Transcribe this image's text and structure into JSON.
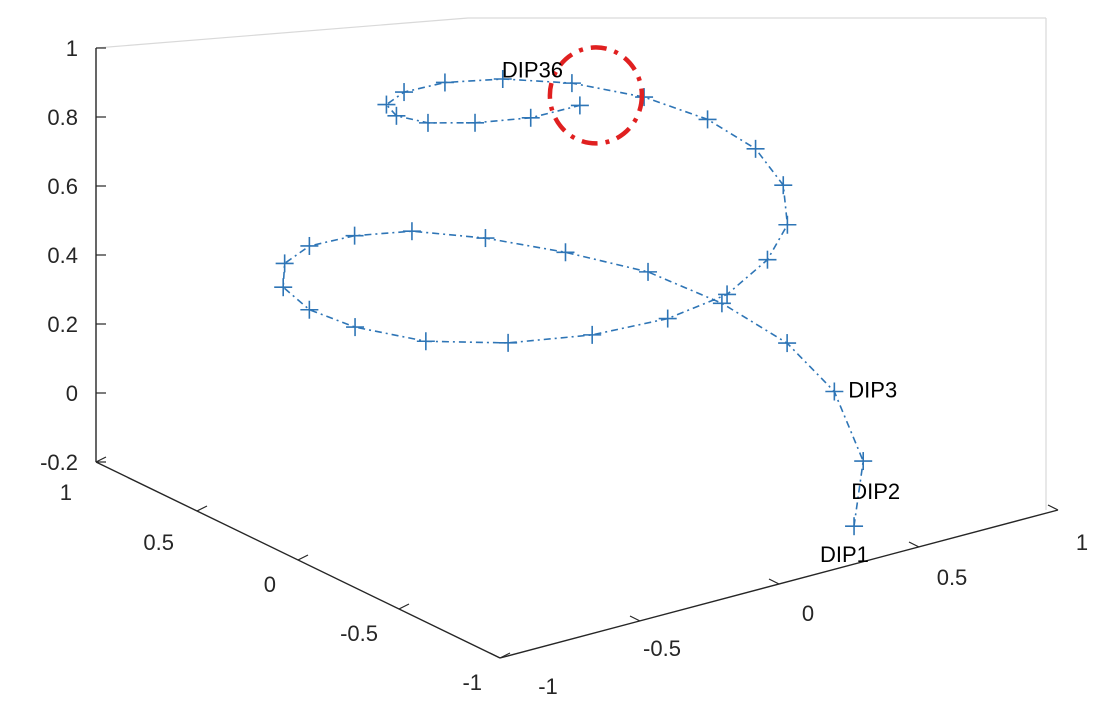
{
  "chart_data": {
    "type": "scatter",
    "projection": "3d",
    "title": "",
    "xlabel": "",
    "ylabel": "",
    "zlabel": "",
    "xlim": [
      -1,
      1
    ],
    "ylim": [
      -1,
      1
    ],
    "zlim": [
      -0.2,
      1
    ],
    "z_ticks": [
      "1",
      "0.8",
      "0.6",
      "0.4",
      "0.2",
      "0",
      "-0.2"
    ],
    "left_ticks": [
      "1",
      "0.5",
      "0",
      "-0.5",
      "-1"
    ],
    "right_ticks": [
      "1",
      "0.5",
      "0",
      "-0.5",
      "-1"
    ],
    "grid": false,
    "series": [
      {
        "marker": "+",
        "line_style": "dash-dot",
        "color": "#2E75B6",
        "points": [
          {
            "x": 0.45,
            "y": -0.75,
            "z": -0.2
          },
          {
            "x": 0.7,
            "y": -0.45,
            "z": -0.15
          },
          {
            "x": 0.85,
            "y": -0.1,
            "z": -0.08
          },
          {
            "x": 0.84,
            "y": 0.12,
            "z": 0.0
          },
          {
            "x": 0.78,
            "y": 0.36,
            "z": 0.06
          },
          {
            "x": 0.66,
            "y": 0.56,
            "z": 0.12
          },
          {
            "x": 0.48,
            "y": 0.72,
            "z": 0.17
          },
          {
            "x": 0.28,
            "y": 0.84,
            "z": 0.22
          },
          {
            "x": 0.06,
            "y": 0.9,
            "z": 0.27
          },
          {
            "x": -0.16,
            "y": 0.88,
            "z": 0.31
          },
          {
            "x": -0.38,
            "y": 0.8,
            "z": 0.35
          },
          {
            "x": -0.57,
            "y": 0.66,
            "z": 0.38
          },
          {
            "x": -0.72,
            "y": 0.46,
            "z": 0.4
          },
          {
            "x": -0.8,
            "y": 0.22,
            "z": 0.42
          },
          {
            "x": -0.81,
            "y": -0.02,
            "z": 0.44
          },
          {
            "x": -0.73,
            "y": -0.26,
            "z": 0.45
          },
          {
            "x": -0.58,
            "y": -0.46,
            "z": 0.47
          },
          {
            "x": -0.38,
            "y": -0.6,
            "z": 0.49
          },
          {
            "x": -0.16,
            "y": -0.67,
            "z": 0.51
          },
          {
            "x": 0.06,
            "y": -0.66,
            "z": 0.53
          },
          {
            "x": 0.27,
            "y": -0.57,
            "z": 0.56
          },
          {
            "x": 0.45,
            "y": -0.42,
            "z": 0.58
          },
          {
            "x": 0.58,
            "y": -0.22,
            "z": 0.61
          },
          {
            "x": 0.64,
            "y": 0.0,
            "z": 0.64
          },
          {
            "x": 0.62,
            "y": 0.21,
            "z": 0.67
          },
          {
            "x": 0.53,
            "y": 0.4,
            "z": 0.7
          },
          {
            "x": 0.38,
            "y": 0.55,
            "z": 0.73
          },
          {
            "x": 0.19,
            "y": 0.63,
            "z": 0.76
          },
          {
            "x": -0.01,
            "y": 0.64,
            "z": 0.79
          },
          {
            "x": -0.2,
            "y": 0.58,
            "z": 0.82
          },
          {
            "x": -0.35,
            "y": 0.46,
            "z": 0.85
          },
          {
            "x": -0.43,
            "y": 0.3,
            "z": 0.88
          },
          {
            "x": -0.44,
            "y": 0.13,
            "z": 0.91
          },
          {
            "x": -0.38,
            "y": -0.02,
            "z": 0.94
          },
          {
            "x": -0.26,
            "y": -0.13,
            "z": 0.96
          },
          {
            "x": -0.12,
            "y": -0.18,
            "z": 0.98
          }
        ]
      }
    ],
    "annotations": [
      {
        "text": "DIP1",
        "point": 1
      },
      {
        "text": "DIP2",
        "point": 2
      },
      {
        "text": "DIP3",
        "point": 3
      },
      {
        "text": "DIP36",
        "point": 36,
        "highlight": "red dashed circle"
      }
    ]
  }
}
